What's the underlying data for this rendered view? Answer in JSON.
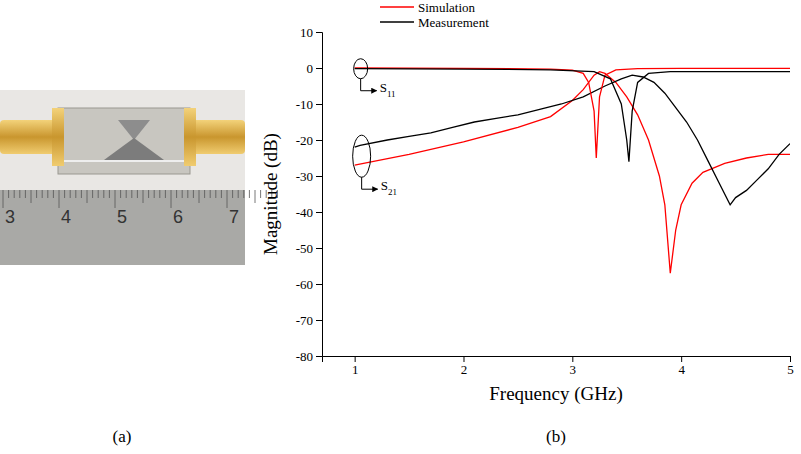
{
  "chart_data": {
    "type": "line",
    "x_label": "Frequency (GHz)",
    "y_label": "Magnitude (dB)",
    "xlim": [
      0.7,
      5
    ],
    "xticks": [
      1,
      2,
      3,
      4,
      5
    ],
    "ylim": [
      -80,
      10
    ],
    "yticks": [
      10,
      0,
      -10,
      -20,
      -30,
      -40,
      -50,
      -60,
      -70,
      -80
    ],
    "legend": "top",
    "series": [
      {
        "name": "Simulation",
        "color": "#ff0000",
        "x": [
          1,
          1.5,
          2,
          2.5,
          2.8,
          3,
          3.1,
          3.2,
          3.25,
          3.3,
          3.4,
          3.5,
          3.6,
          3.7,
          3.8,
          3.85,
          3.9,
          3.95,
          4,
          4.1,
          4.2,
          4.4,
          4.6,
          4.8,
          5
        ],
        "values": [
          -27,
          -24,
          -20.5,
          -16.5,
          -13.5,
          -9,
          -6,
          -2,
          -1,
          -1.5,
          -4,
          -8,
          -13,
          -20,
          -30,
          -38,
          -57,
          -45,
          -38,
          -32,
          -29,
          -26.5,
          -25,
          -24,
          -24
        ]
      },
      {
        "name": "Measurement",
        "color": "#000000",
        "x": [
          1,
          1.05,
          1.3,
          1.5,
          1.7,
          1.9,
          2.1,
          2.3,
          2.5,
          2.7,
          2.9,
          3.1,
          3.3,
          3.45,
          3.55,
          3.65,
          3.75,
          3.85,
          3.95,
          4.05,
          4.15,
          4.25,
          4.35,
          4.45,
          4.5,
          4.6,
          4.7,
          4.8,
          4.9,
          5
        ],
        "values": [
          -22,
          -21.5,
          -20,
          -19,
          -18,
          -16.5,
          -15,
          -14,
          -13,
          -11.5,
          -10,
          -8,
          -5,
          -3,
          -2,
          -2.5,
          -4,
          -7,
          -11,
          -15,
          -20,
          -26,
          -32,
          -38,
          -36,
          -34,
          -31,
          -28,
          -24,
          -21
        ]
      },
      {
        "name": "Simulation",
        "color": "#ff0000",
        "x": [
          1,
          2,
          2.8,
          3,
          3.1,
          3.15,
          3.2,
          3.22,
          3.25,
          3.3,
          3.4,
          3.6,
          4,
          5
        ],
        "values": [
          0,
          -0.1,
          -0.3,
          -0.6,
          -1.5,
          -4,
          -12,
          -25,
          -8,
          -2,
          -0.5,
          -0.2,
          -0.1,
          -0.1
        ]
      },
      {
        "name": "Measurement",
        "color": "#000000",
        "x": [
          1,
          2,
          2.8,
          3.2,
          3.35,
          3.45,
          3.5,
          3.52,
          3.55,
          3.6,
          3.7,
          3.9,
          4.5,
          5
        ],
        "values": [
          -0.2,
          -0.3,
          -0.5,
          -1,
          -3,
          -10,
          -20,
          -26,
          -12,
          -4,
          -1.5,
          -1,
          -1,
          -1
        ]
      }
    ],
    "annotations": [
      {
        "text": "S11"
      },
      {
        "text": "S21"
      }
    ]
  },
  "photo": {
    "ruler_labels": [
      "3",
      "4",
      "5",
      "6",
      "7"
    ]
  },
  "figure": {
    "panel_labels": [
      "(a)",
      "(b)"
    ]
  }
}
